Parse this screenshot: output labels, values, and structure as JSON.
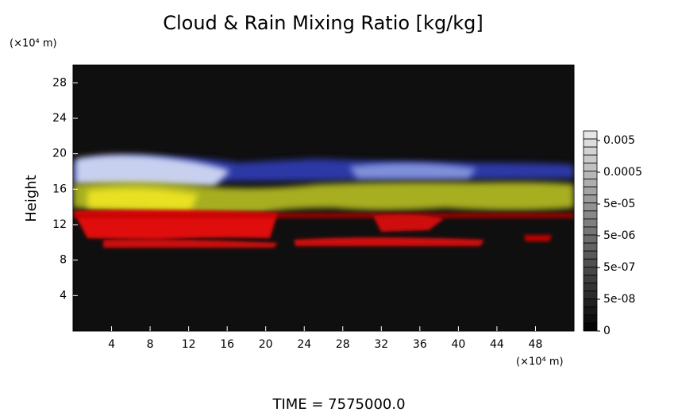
{
  "chart_data": {
    "type": "heatmap",
    "title": "Cloud & Rain Mixing Ratio [kg/kg]",
    "y_label": "Height",
    "y_unit": "(×10⁴ m)",
    "x_unit": "(×10⁴ m)",
    "xlim": [
      0,
      52
    ],
    "xticks": [
      4,
      8,
      12,
      16,
      20,
      24,
      28,
      32,
      36,
      40,
      44,
      48
    ],
    "ylim": [
      0,
      30
    ],
    "yticks": [
      4,
      8,
      12,
      16,
      20,
      24,
      28
    ],
    "colorbar": {
      "ticks": [
        0.005,
        0.0005,
        {
          "value": 5e-05,
          "label": "5e-05"
        },
        {
          "value": 5e-06,
          "label": "5e-06"
        },
        {
          "value": 5e-07,
          "label": "5e-07"
        },
        {
          "value": 5e-08,
          "label": "5e-08"
        },
        0
      ]
    },
    "footer": "TIME = 7575000.0"
  }
}
